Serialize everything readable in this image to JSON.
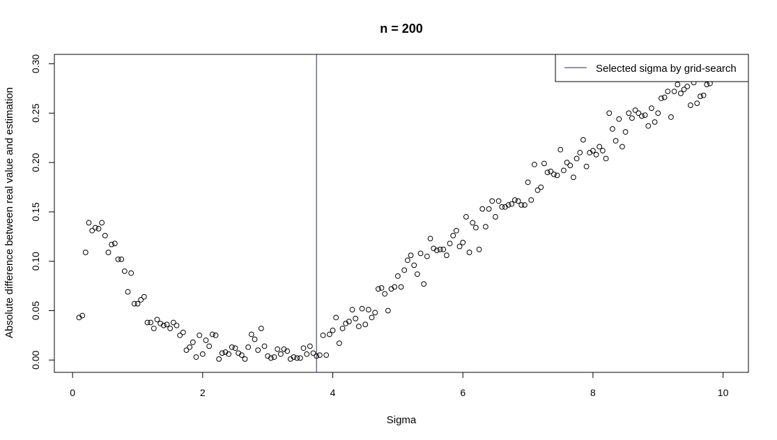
{
  "chart_data": {
    "type": "scatter",
    "title": "n = 200",
    "xlabel": "Sigma",
    "ylabel": "Absolute difference between real value and estimation",
    "xlim": [
      -0.28,
      10.39
    ],
    "ylim": [
      -0.0125,
      0.3095
    ],
    "xticks": [
      "0",
      "2",
      "4",
      "6",
      "8",
      "10"
    ],
    "yticks": [
      "0.00",
      "0.05",
      "0.10",
      "0.15",
      "0.20",
      "0.25",
      "0.30"
    ],
    "grid": false,
    "legend": {
      "position": "top-right",
      "entries": [
        "Selected sigma by grid-search"
      ]
    },
    "vline": {
      "x": 3.75,
      "label": "Selected sigma by grid-search",
      "color": "#1f2a6b"
    },
    "point_color": "#000000",
    "x": [
      0.1,
      0.15,
      0.2,
      0.25,
      0.3,
      0.35,
      0.4,
      0.45,
      0.5,
      0.55,
      0.6,
      0.65,
      0.7,
      0.75,
      0.8,
      0.85,
      0.9,
      0.95,
      1,
      1.05,
      1.1,
      1.15,
      1.2,
      1.25,
      1.3,
      1.35,
      1.4,
      1.45,
      1.5,
      1.55,
      1.6,
      1.65,
      1.7,
      1.75,
      1.8,
      1.85,
      1.9,
      1.95,
      2,
      2.05,
      2.1,
      2.15,
      2.2,
      2.25,
      2.3,
      2.35,
      2.4,
      2.45,
      2.5,
      2.55,
      2.6,
      2.65,
      2.7,
      2.75,
      2.8,
      2.85,
      2.9,
      2.95,
      3,
      3.05,
      3.1,
      3.15,
      3.2,
      3.25,
      3.3,
      3.35,
      3.4,
      3.45,
      3.5,
      3.55,
      3.6,
      3.65,
      3.7,
      3.75,
      3.8,
      3.85,
      3.9,
      3.95,
      4,
      4.05,
      4.1,
      4.15,
      4.2,
      4.25,
      4.3,
      4.35,
      4.4,
      4.45,
      4.5,
      4.55,
      4.6,
      4.65,
      4.7,
      4.75,
      4.8,
      4.85,
      4.9,
      4.95,
      5,
      5.05,
      5.1,
      5.15,
      5.2,
      5.25,
      5.3,
      5.35,
      5.4,
      5.45,
      5.5,
      5.55,
      5.6,
      5.65,
      5.7,
      5.75,
      5.8,
      5.85,
      5.9,
      5.95,
      6,
      6.05,
      6.1,
      6.15,
      6.2,
      6.25,
      6.3,
      6.35,
      6.4,
      6.45,
      6.5,
      6.55,
      6.6,
      6.65,
      6.7,
      6.75,
      6.8,
      6.85,
      6.9,
      6.95,
      7,
      7.05,
      7.1,
      7.15,
      7.2,
      7.25,
      7.3,
      7.35,
      7.4,
      7.45,
      7.5,
      7.55,
      7.6,
      7.65,
      7.7,
      7.75,
      7.8,
      7.85,
      7.9,
      7.95,
      8,
      8.05,
      8.1,
      8.15,
      8.2,
      8.25,
      8.3,
      8.35,
      8.4,
      8.45,
      8.5,
      8.55,
      8.6,
      8.65,
      8.7,
      8.75,
      8.8,
      8.85,
      8.9,
      8.95,
      9,
      9.05,
      9.1,
      9.15,
      9.2,
      9.25,
      9.3,
      9.35,
      9.4,
      9.45,
      9.5,
      9.55,
      9.6,
      9.65,
      9.7,
      9.75,
      9.8,
      9.85,
      9.9,
      9.95,
      10
    ],
    "y": [
      0.043,
      0.045,
      0.109,
      0.139,
      0.131,
      0.134,
      0.133,
      0.139,
      0.126,
      0.109,
      0.117,
      0.118,
      0.102,
      0.102,
      0.09,
      0.069,
      0.088,
      0.057,
      0.057,
      0.061,
      0.064,
      0.038,
      0.038,
      0.032,
      0.041,
      0.037,
      0.035,
      0.036,
      0.032,
      0.038,
      0.035,
      0.025,
      0.028,
      0.01,
      0.013,
      0.018,
      0.003,
      0.025,
      0.006,
      0.02,
      0.014,
      0.026,
      0.025,
      0.001,
      0.007,
      0.008,
      0.006,
      0.013,
      0.012,
      0.007,
      0.005,
      0.001,
      0.013,
      0.026,
      0.021,
      0.01,
      0.032,
      0.014,
      0.004,
      0.002,
      0.003,
      0.011,
      0.006,
      0.011,
      0.009,
      0.001,
      0.003,
      0.002,
      0.002,
      0.012,
      0.006,
      0.014,
      0.007,
      0.004,
      0.005,
      0.025,
      0.005,
      0.026,
      0.03,
      0.043,
      0.017,
      0.032,
      0.037,
      0.039,
      0.051,
      0.042,
      0.034,
      0.052,
      0.036,
      0.051,
      0.043,
      0.048,
      0.072,
      0.073,
      0.067,
      0.05,
      0.072,
      0.074,
      0.085,
      0.074,
      0.091,
      0.101,
      0.106,
      0.096,
      0.087,
      0.108,
      0.077,
      0.105,
      0.123,
      0.113,
      0.111,
      0.112,
      0.112,
      0.106,
      0.118,
      0.126,
      0.131,
      0.115,
      0.119,
      0.145,
      0.109,
      0.139,
      0.134,
      0.112,
      0.153,
      0.135,
      0.153,
      0.161,
      0.145,
      0.161,
      0.155,
      0.155,
      0.157,
      0.158,
      0.162,
      0.161,
      0.157,
      0.157,
      0.18,
      0.162,
      0.198,
      0.172,
      0.175,
      0.199,
      0.19,
      0.191,
      0.188,
      0.187,
      0.213,
      0.192,
      0.2,
      0.197,
      0.185,
      0.204,
      0.21,
      0.223,
      0.196,
      0.21,
      0.212,
      0.208,
      0.216,
      0.212,
      0.204,
      0.25,
      0.234,
      0.222,
      0.244,
      0.216,
      0.231,
      0.25,
      0.245,
      0.253,
      0.25,
      0.247,
      0.248,
      0.237,
      0.255,
      0.241,
      0.25,
      0.265,
      0.266,
      0.272,
      0.246,
      0.272,
      0.279,
      0.27,
      0.274,
      0.277,
      0.258,
      0.281,
      0.26,
      0.267,
      0.268,
      0.279,
      0.28,
      0.289,
      0.29,
      0.297,
      0.29
    ]
  }
}
